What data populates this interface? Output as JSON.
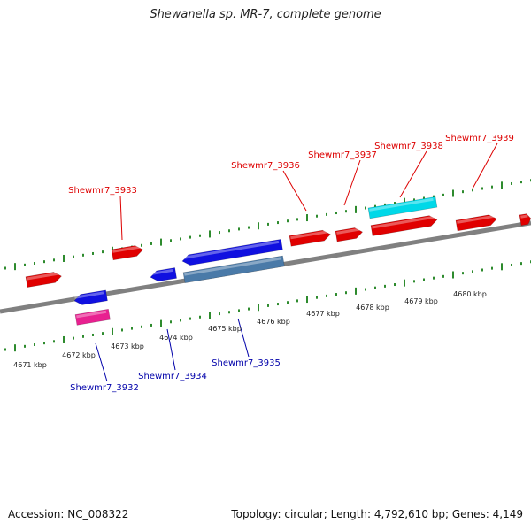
{
  "title": "Shewanella sp. MR-7, complete genome",
  "footer": {
    "accession": "Accession: NC_008322",
    "summary": "Topology: circular; Length: 4,792,610 bp; Genes: 4,149"
  },
  "colors": {
    "forward_label": "#dd0000",
    "reverse_label": "#0000aa",
    "tick": "#2e8b2e",
    "backbone": "#808080"
  },
  "tick_labels": [
    "4671 kbp",
    "4672 kbp",
    "4673 kbp",
    "4674 kbp",
    "4675 kbp",
    "4676 kbp",
    "4677 kbp",
    "4678 kbp",
    "4679 kbp",
    "4680 kbp"
  ],
  "gene_labels": {
    "forward": [
      "Shewmr7_3933",
      "Shewmr7_3936",
      "Shewmr7_3937",
      "Shewmr7_3938",
      "Shewmr7_3939"
    ],
    "reverse": [
      "Shewmr7_3932",
      "Shewmr7_3934",
      "Shewmr7_3935"
    ]
  },
  "features": [
    {
      "strand": "+",
      "color": "#e00000",
      "kind": "gene"
    },
    {
      "strand": "+",
      "color": "#e00000",
      "kind": "gene"
    },
    {
      "strand": "+",
      "color": "#e00000",
      "kind": "gene"
    },
    {
      "strand": "+",
      "color": "#e00000",
      "kind": "gene"
    },
    {
      "strand": "+",
      "color": "#e00000",
      "kind": "gene"
    },
    {
      "strand": "+",
      "color": "#e00000",
      "kind": "gene"
    },
    {
      "strand": "+",
      "color": "#e00000",
      "kind": "gene"
    },
    {
      "strand": "+",
      "color": "#00d8e8",
      "kind": "rna"
    },
    {
      "strand": "-",
      "color": "#1010e0",
      "kind": "gene"
    },
    {
      "strand": "-",
      "color": "#e82090",
      "kind": "rna"
    },
    {
      "strand": "-",
      "color": "#1010e0",
      "kind": "gene"
    },
    {
      "strand": "-",
      "color": "#1010e0",
      "kind": "gene"
    },
    {
      "strand": "-",
      "color": "#4a7aa8",
      "kind": "cds"
    }
  ]
}
